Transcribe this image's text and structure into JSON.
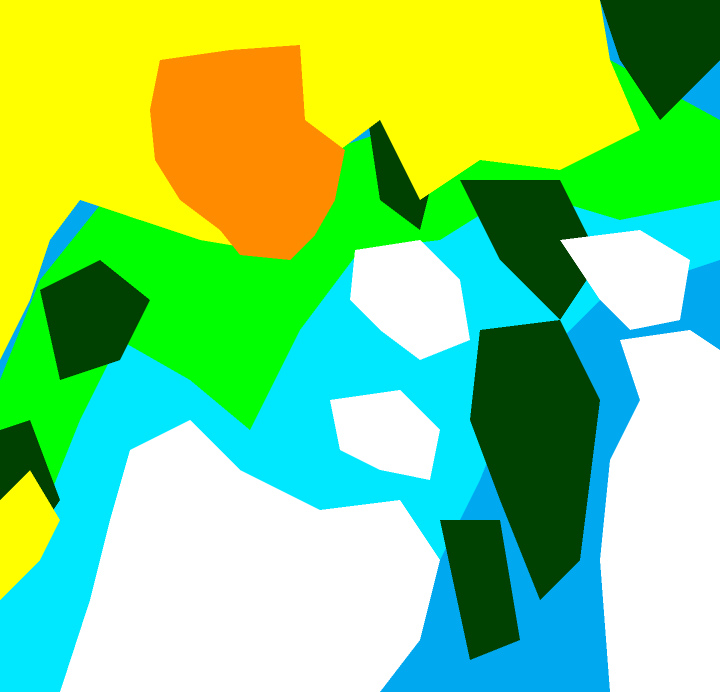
{
  "map": {
    "type": "classified-raster",
    "colors": {
      "class_1": "#ffff00",
      "class_2": "#ff8c00",
      "class_3": "#00ff00",
      "class_4": "#004000",
      "class_5": "#00e8ff",
      "class_6": "#00a8f0",
      "class_7": "#ffffff"
    }
  }
}
